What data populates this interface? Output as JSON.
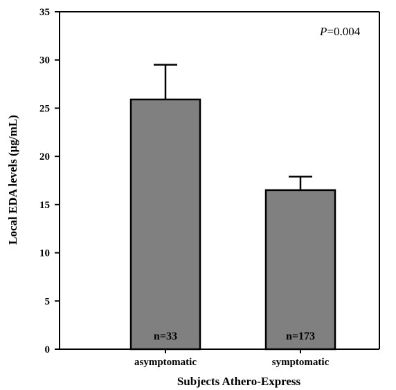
{
  "chart_data": {
    "type": "bar",
    "categories": [
      "asymptomatic",
      "symptomatic"
    ],
    "values": [
      25.9,
      16.5
    ],
    "error_upper": [
      29.5,
      17.9
    ],
    "bar_labels": [
      "n=33",
      "n=173"
    ],
    "xlabel": "Subjects Athero-Express",
    "ylabel": "Local EDA levels (μg/mL)",
    "ylim": [
      0,
      35
    ],
    "yticks": [
      0,
      5,
      10,
      15,
      20,
      25,
      30,
      35
    ],
    "annotation": {
      "italic": "P",
      "text": "=0.004"
    },
    "grid": false,
    "bar_color": "#808080"
  }
}
